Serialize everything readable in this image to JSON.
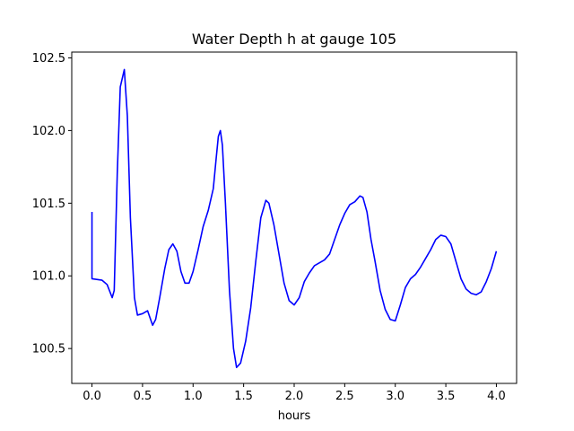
{
  "chart_data": {
    "type": "line",
    "title": "Water Depth h at gauge 105",
    "xlabel": "hours",
    "ylabel": "",
    "xlim": [
      -0.2,
      4.2
    ],
    "ylim": [
      100.26,
      102.54
    ],
    "xticks": [
      0.0,
      0.5,
      1.0,
      1.5,
      2.0,
      2.5,
      3.0,
      3.5,
      4.0
    ],
    "xtick_labels": [
      "0.0",
      "0.5",
      "1.0",
      "1.5",
      "2.0",
      "2.5",
      "3.0",
      "3.5",
      "4.0"
    ],
    "yticks": [
      100.5,
      101.0,
      101.5,
      102.0,
      102.5
    ],
    "ytick_labels": [
      "100.5",
      "101.0",
      "101.5",
      "102.0",
      "102.5"
    ],
    "grid": false,
    "series": [
      {
        "color": "#0000ff",
        "x": [
          0.0,
          0.0,
          0.1,
          0.15,
          0.2,
          0.22,
          0.25,
          0.28,
          0.32,
          0.35,
          0.38,
          0.42,
          0.45,
          0.5,
          0.55,
          0.6,
          0.63,
          0.67,
          0.72,
          0.76,
          0.8,
          0.84,
          0.88,
          0.92,
          0.96,
          1.0,
          1.05,
          1.1,
          1.15,
          1.2,
          1.23,
          1.25,
          1.27,
          1.29,
          1.32,
          1.36,
          1.4,
          1.43,
          1.47,
          1.52,
          1.57,
          1.62,
          1.67,
          1.72,
          1.75,
          1.8,
          1.85,
          1.9,
          1.95,
          2.0,
          2.05,
          2.1,
          2.15,
          2.2,
          2.25,
          2.3,
          2.35,
          2.4,
          2.45,
          2.5,
          2.55,
          2.6,
          2.65,
          2.68,
          2.72,
          2.76,
          2.8,
          2.85,
          2.9,
          2.95,
          3.0,
          3.05,
          3.1,
          3.15,
          3.2,
          3.25,
          3.3,
          3.35,
          3.4,
          3.45,
          3.5,
          3.55,
          3.6,
          3.65,
          3.7,
          3.75,
          3.8,
          3.85,
          3.9,
          3.95,
          4.0
        ],
        "y": [
          101.44,
          100.98,
          100.97,
          100.94,
          100.85,
          100.9,
          101.7,
          102.3,
          102.42,
          102.1,
          101.4,
          100.85,
          100.73,
          100.74,
          100.76,
          100.66,
          100.7,
          100.85,
          101.05,
          101.18,
          101.22,
          101.17,
          101.03,
          100.95,
          100.95,
          101.03,
          101.18,
          101.34,
          101.45,
          101.6,
          101.82,
          101.96,
          102.0,
          101.9,
          101.5,
          100.9,
          100.5,
          100.37,
          100.4,
          100.55,
          100.78,
          101.1,
          101.4,
          101.52,
          101.5,
          101.35,
          101.15,
          100.95,
          100.83,
          100.8,
          100.85,
          100.96,
          101.02,
          101.07,
          101.09,
          101.11,
          101.15,
          101.25,
          101.35,
          101.43,
          101.49,
          101.51,
          101.55,
          101.54,
          101.44,
          101.25,
          101.1,
          100.9,
          100.77,
          100.7,
          100.69,
          100.8,
          100.92,
          100.98,
          101.01,
          101.06,
          101.12,
          101.18,
          101.25,
          101.28,
          101.27,
          101.22,
          101.1,
          100.98,
          100.91,
          100.88,
          100.87,
          100.89,
          100.96,
          101.05,
          101.17
        ]
      }
    ]
  }
}
